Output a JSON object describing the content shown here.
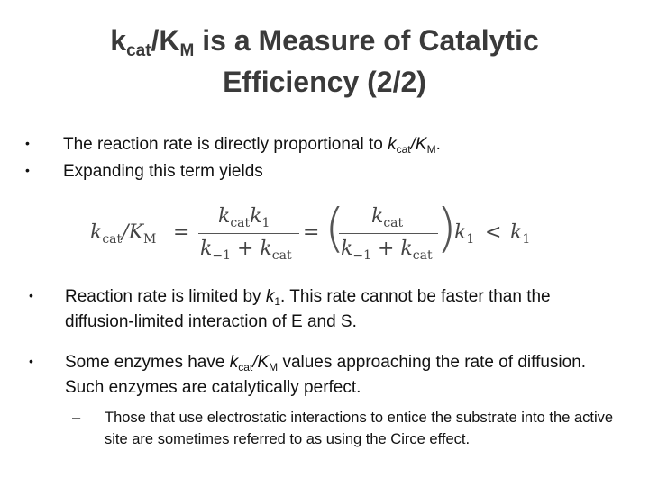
{
  "title": {
    "k1": "k",
    "k1_sub": "cat",
    "slash": "/K",
    "k2_sub": "M",
    "rest_line1": " is a Measure of Catalytic",
    "line2": "Efficiency (2/2)"
  },
  "bullets_top": [
    {
      "pre": "The reaction rate is directly proportional to ",
      "k": "k",
      "k_sub": "cat",
      "slash": "/K",
      "K_sub": "M",
      "post": "."
    },
    {
      "text": "Expanding this term yields"
    }
  ],
  "equation": {
    "lhs_k": "k",
    "lhs_k_sub": "cat",
    "lhs_slash": "/K",
    "lhs_K_sub": "M",
    "eq1": "=",
    "num1_k": "k",
    "num1_k_sub": "cat",
    "num1_k2": "k",
    "num1_k2_sub": "1",
    "den1_k": "k",
    "den1_k_sub": "−1",
    "den1_plus": "+",
    "den1_k2": "k",
    "den1_k2_sub": "cat",
    "eq2": "=",
    "paren_open": "(",
    "num2_k": "k",
    "num2_k_sub": "cat",
    "den2_k": "k",
    "den2_k_sub": "−1",
    "den2_plus": "+",
    "den2_k2": "k",
    "den2_k2_sub": "cat",
    "paren_close": ")",
    "after_k": "k",
    "after_k_sub": "1",
    "lt": "<",
    "rhs_k": "k",
    "rhs_k_sub": "1"
  },
  "bullets_bottom": [
    {
      "pre": "Reaction rate is limited by ",
      "k": "k",
      "k_sub": "1",
      "post": ". This rate cannot be faster than the diffusion-limited interaction of E and S."
    },
    {
      "pre": "Some enzymes have ",
      "k": "k",
      "k_sub": "cat",
      "slash": "/K",
      "K_sub": "M",
      "post": " values approaching the rate of diffusion. Such enzymes are catalytically perfect."
    }
  ],
  "subbullet": {
    "text": "Those that use electrostatic interactions to entice the substrate into the active site are sometimes referred to as using the Circe effect."
  }
}
